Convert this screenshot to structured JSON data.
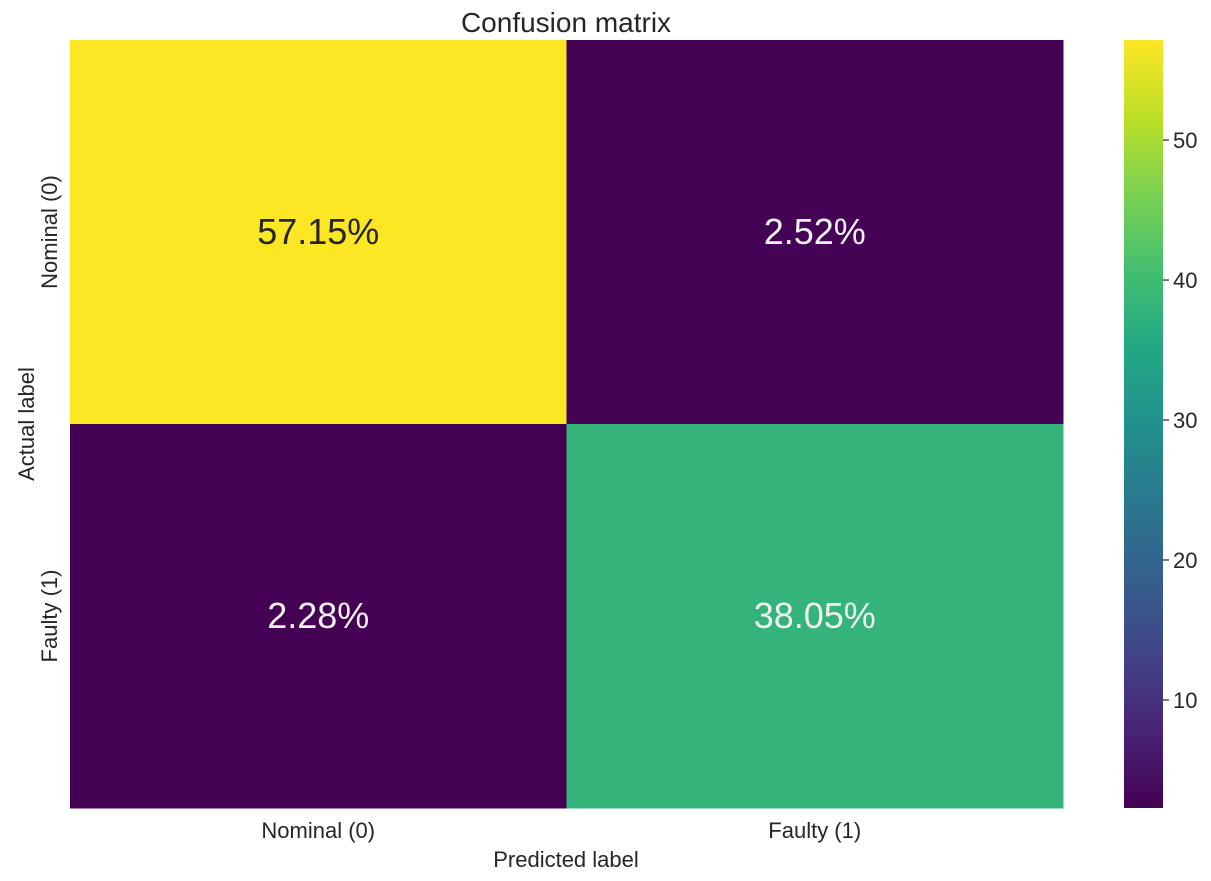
{
  "chart_data": {
    "type": "heatmap",
    "title": "Confusion matrix",
    "xlabel": "Predicted label",
    "ylabel": "Actual label",
    "x_categories": [
      "Nominal (0)",
      "Faulty (1)"
    ],
    "y_categories": [
      "Nominal (0)",
      "Faulty (1)"
    ],
    "values": [
      [
        57.15,
        2.52
      ],
      [
        2.28,
        38.05
      ]
    ],
    "cell_labels": [
      [
        "57.15%",
        "2.52%"
      ],
      [
        "2.28%",
        "38.05%"
      ]
    ],
    "colormap": "viridis",
    "colorbar": {
      "range": [
        2.28,
        57.15
      ],
      "ticks": [
        10,
        20,
        30,
        40,
        50
      ],
      "tick_labels": [
        "10",
        "20",
        "30",
        "40",
        "50"
      ]
    },
    "cell_text_colors": [
      [
        "#262626",
        "#f0f0f0"
      ],
      [
        "#f0f0f0",
        "#f0f0f0"
      ]
    ],
    "grid": false
  }
}
